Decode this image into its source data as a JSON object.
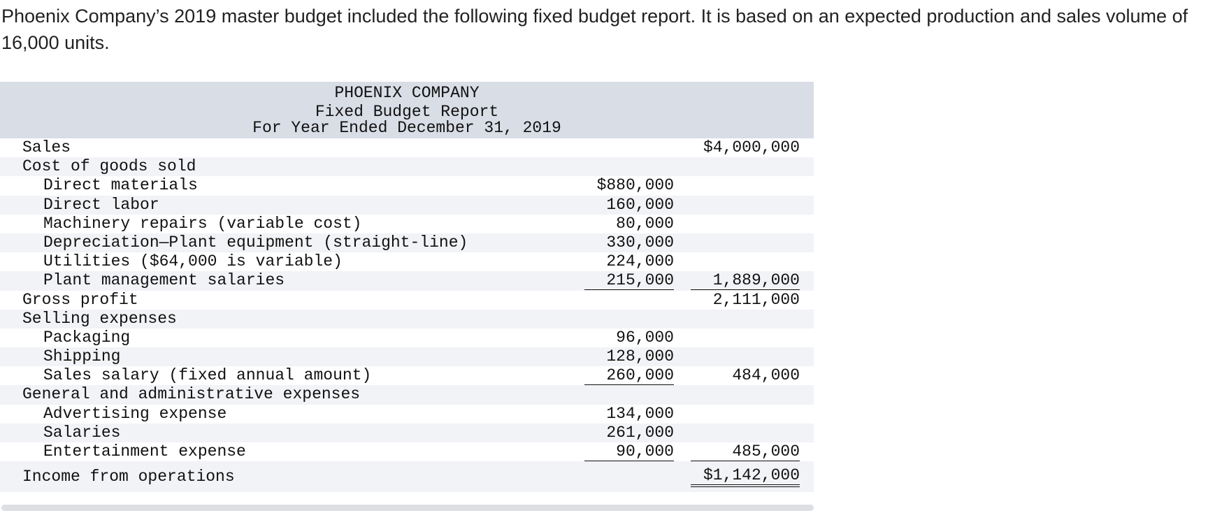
{
  "intro": "Phoenix Company’s 2019 master budget included the following fixed budget report. It is based on an expected production and sales volume of 16,000 units.",
  "report": {
    "company": "PHOENIX COMPANY",
    "title": "Fixed Budget Report",
    "period": "For Year Ended December 31, 2019",
    "rows": [
      {
        "label": "Sales",
        "col1": "",
        "col2": "$4,000,000"
      },
      {
        "label": "Cost of goods sold",
        "col1": "",
        "col2": ""
      },
      {
        "label": "Direct materials",
        "col1": "$880,000",
        "col2": ""
      },
      {
        "label": "Direct labor",
        "col1": "160,000",
        "col2": ""
      },
      {
        "label": "Machinery repairs (variable cost)",
        "col1": "80,000",
        "col2": ""
      },
      {
        "label": "Depreciation—Plant equipment (straight-line)",
        "col1": "330,000",
        "col2": ""
      },
      {
        "label": "Utilities ($64,000 is variable)",
        "col1": "224,000",
        "col2": ""
      },
      {
        "label": "Plant management salaries",
        "col1": "215,000",
        "col2": "1,889,000"
      },
      {
        "label": "Gross profit",
        "col1": "",
        "col2": "2,111,000"
      },
      {
        "label": "Selling expenses",
        "col1": "",
        "col2": ""
      },
      {
        "label": "Packaging",
        "col1": "96,000",
        "col2": ""
      },
      {
        "label": "Shipping",
        "col1": "128,000",
        "col2": ""
      },
      {
        "label": "Sales salary (fixed annual amount)",
        "col1": "260,000",
        "col2": "484,000"
      },
      {
        "label": "General and administrative expenses",
        "col1": "",
        "col2": ""
      },
      {
        "label": "Advertising expense",
        "col1": "134,000",
        "col2": ""
      },
      {
        "label": "Salaries",
        "col1": "261,000",
        "col2": ""
      },
      {
        "label": "Entertainment expense",
        "col1": "90,000",
        "col2": "485,000"
      },
      {
        "label": "Income from operations",
        "col1": "",
        "col2": "$1,142,000"
      }
    ]
  }
}
